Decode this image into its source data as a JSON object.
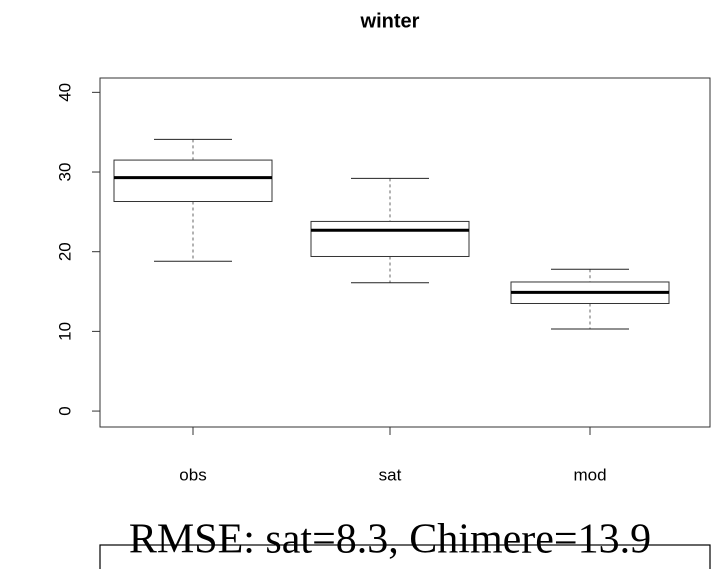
{
  "chart_data": {
    "type": "box",
    "title": "winter",
    "categories": [
      "obs",
      "sat",
      "mod"
    ],
    "boxes": [
      {
        "low": 18.8,
        "q1": 26.3,
        "median": 29.3,
        "q3": 31.5,
        "high": 34.1
      },
      {
        "low": 16.1,
        "q1": 19.4,
        "median": 22.7,
        "q3": 23.8,
        "high": 29.2
      },
      {
        "low": 10.3,
        "q1": 13.5,
        "median": 14.9,
        "q3": 16.2,
        "high": 17.8
      }
    ],
    "ylim": [
      -2,
      41.8
    ],
    "yticks": [
      0,
      10,
      20,
      30,
      40
    ],
    "annotation": "RMSE: sat=8.3, Chimere=13.9"
  }
}
